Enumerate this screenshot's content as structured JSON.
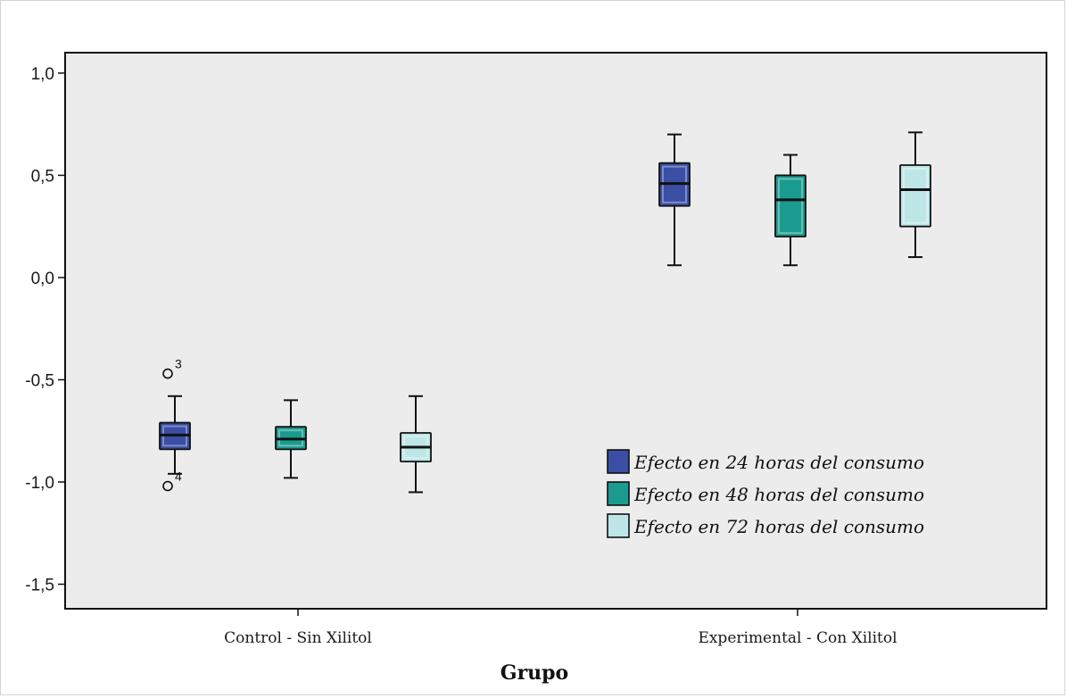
{
  "chart_data": {
    "type": "boxplot",
    "xlabel": "Grupo",
    "ylabel": "",
    "ylim": [
      -1.62,
      1.1
    ],
    "yticks": [
      1.0,
      0.5,
      0.0,
      -0.5,
      -1.0,
      -1.5
    ],
    "ytick_labels": [
      "1,0",
      "0,5",
      "0,0",
      "-0,5",
      "-1,0",
      "-1,5"
    ],
    "categories": [
      "Control - Sin Xilitol",
      "Experimental - Con Xilitol"
    ],
    "legend_position": "bottom-right inside plot",
    "grid": false,
    "plot_background": "#ececec",
    "series": [
      {
        "name": "Efecto en 24 horas del consumo",
        "color": "#3a4ea3",
        "boxes": [
          {
            "min": -0.96,
            "q1": -0.84,
            "median": -0.77,
            "q3": -0.71,
            "max": -0.58,
            "outliers": [
              {
                "value": -0.47,
                "label": "3"
              },
              {
                "value": -1.02,
                "label": "4"
              }
            ]
          },
          {
            "min": 0.06,
            "q1": 0.35,
            "median": 0.46,
            "q3": 0.56,
            "max": 0.7,
            "outliers": []
          }
        ]
      },
      {
        "name": "Efecto en 48 horas del consumo",
        "color": "#1b9b8f",
        "boxes": [
          {
            "min": -0.98,
            "q1": -0.84,
            "median": -0.79,
            "q3": -0.73,
            "max": -0.6,
            "outliers": []
          },
          {
            "min": 0.06,
            "q1": 0.2,
            "median": 0.38,
            "q3": 0.5,
            "max": 0.6,
            "outliers": []
          }
        ]
      },
      {
        "name": "Efecto en 72 horas del consumo",
        "color": "#bfe6e6",
        "boxes": [
          {
            "min": -1.05,
            "q1": -0.9,
            "median": -0.83,
            "q3": -0.76,
            "max": -0.58,
            "outliers": []
          },
          {
            "min": 0.1,
            "q1": 0.25,
            "median": 0.43,
            "q3": 0.55,
            "max": 0.71,
            "outliers": []
          }
        ]
      }
    ]
  }
}
